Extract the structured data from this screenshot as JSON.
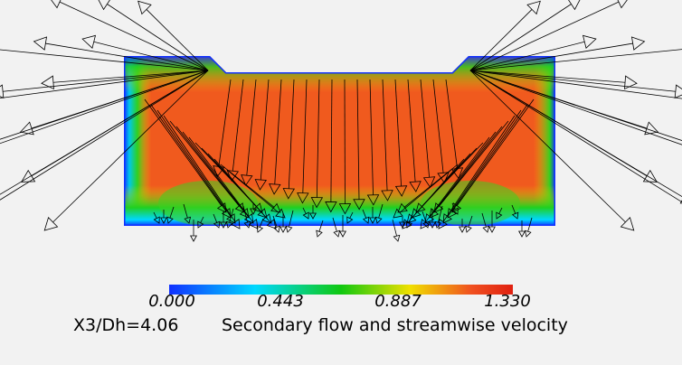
{
  "chart_data": {
    "type": "heatmap",
    "subtitle": "Secondary flow and streamwise velocity",
    "station_label": "X3/Dh=4.06",
    "colorbar": {
      "min": 0.0,
      "max": 1.33,
      "tick_labels": [
        "0.000",
        "0.443",
        "0.887",
        "1.330"
      ],
      "colormap": [
        "#1030ff",
        "#00d8ff",
        "#10c810",
        "#f0e000",
        "#f05020",
        "#e02010"
      ]
    },
    "overlay": "secondary-flow velocity vectors"
  }
}
